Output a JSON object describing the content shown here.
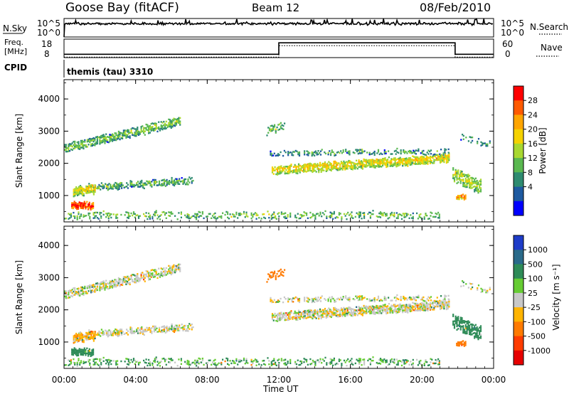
{
  "header": {
    "station": "Goose Bay (fitACF)",
    "beam": "Beam 12",
    "date": "08/Feb/2010"
  },
  "summary_panels": {
    "nsky": {
      "label": "N.Sky",
      "ticks": [
        "10^5",
        "10^0"
      ],
      "right_ticks": [
        "10^5",
        "10^0"
      ],
      "right_label": "N.Search",
      "level_fraction": 0.72
    },
    "freq": {
      "label_line1": "Freq.",
      "label_line2": "[MHz]",
      "ticks": [
        "18",
        "8"
      ],
      "right_ticks": [
        "60",
        "0"
      ],
      "right_label": "Nave",
      "steps": [
        {
          "from_hour": 0,
          "to_hour": 12,
          "level": 0.18
        },
        {
          "from_hour": 12,
          "to_hour": 21.85,
          "level": 0.8
        },
        {
          "from_hour": 21.85,
          "to_hour": 24,
          "level": 0.18
        }
      ]
    },
    "cpid": {
      "label": "CPID",
      "program": "themis (tau) 3310"
    }
  },
  "axes": {
    "ylabel": "Slant Range [km]",
    "xlabel": "Time UT",
    "xticks": [
      "00:00",
      "04:00",
      "08:00",
      "12:00",
      "16:00",
      "20:00",
      "00:00"
    ],
    "yticks": [
      "4000",
      "3000",
      "2000",
      "1000"
    ]
  },
  "power_colorbar": {
    "title": "Power [dB]",
    "ticks": [
      "28",
      "24",
      "20",
      "16",
      "12",
      "8",
      "4"
    ],
    "colors": [
      "#ff0000",
      "#ff5a00",
      "#ffa500",
      "#f5d200",
      "#a8d830",
      "#5ab850",
      "#2e8b70",
      "#1e5aa0",
      "#0000ff"
    ]
  },
  "velocity_colorbar": {
    "title": "Velocity [m s⁻¹]",
    "ticks": [
      "1000",
      "500",
      "100",
      "25",
      "-25",
      "-100",
      "-500",
      "-1000"
    ],
    "colors": [
      "#1e3cc8",
      "#2a6a8a",
      "#2e8b57",
      "#66cc33",
      "#c8c8c8",
      "#ffb400",
      "#ff7a00",
      "#ff3c00",
      "#e60000"
    ]
  },
  "chart_data": {
    "type": "heatmap",
    "x_range_hours": [
      0,
      24
    ],
    "y_range_km": [
      180,
      4600
    ],
    "echo_regions": [
      {
        "name": "band-far-morning",
        "start_h": 0.0,
        "end_h": 6.5,
        "range_start_km": 2500,
        "range_end_km": 3350,
        "thickness_km": 230,
        "density": 0.75,
        "power_mean": 9,
        "vel_mean": 0
      },
      {
        "name": "band-morning-mid",
        "start_h": 0.8,
        "end_h": 7.2,
        "range_start_km": 1250,
        "range_end_km": 1500,
        "thickness_km": 170,
        "density": 0.6,
        "power_mean": 8,
        "vel_mean": 0
      },
      {
        "name": "patch-early-1200",
        "start_h": 0.5,
        "end_h": 1.7,
        "range_start_km": 1150,
        "range_end_km": 1250,
        "thickness_km": 260,
        "density": 0.9,
        "power_mean": 14,
        "vel_mean": -60
      },
      {
        "name": "patch-early-700",
        "start_h": 0.4,
        "end_h": 1.6,
        "range_start_km": 720,
        "range_end_km": 720,
        "thickness_km": 180,
        "density": 0.95,
        "power_mean": 24,
        "vel_mean": 120
      },
      {
        "name": "band-near-day",
        "start_h": 0.0,
        "end_h": 21.0,
        "range_start_km": 420,
        "range_end_km": 420,
        "thickness_km": 180,
        "density": 0.35,
        "power_mean": 9,
        "vel_mean": 60
      },
      {
        "name": "band-afternoon-main",
        "start_h": 11.6,
        "end_h": 21.5,
        "range_start_km": 1820,
        "range_end_km": 2220,
        "thickness_km": 260,
        "density": 0.85,
        "power_mean": 14,
        "vel_mean": 0
      },
      {
        "name": "band-afternoon-upper",
        "start_h": 11.5,
        "end_h": 21.5,
        "range_start_km": 2350,
        "range_end_km": 2400,
        "thickness_km": 130,
        "density": 0.45,
        "power_mean": 7,
        "vel_mean": 0
      },
      {
        "name": "patch-noon-far",
        "start_h": 11.3,
        "end_h": 12.3,
        "range_start_km": 3050,
        "range_end_km": 3250,
        "thickness_km": 260,
        "density": 0.4,
        "power_mean": 8,
        "vel_mean": -150
      },
      {
        "name": "patch-evening",
        "start_h": 21.7,
        "end_h": 23.3,
        "range_start_km": 1700,
        "range_end_km": 1300,
        "thickness_km": 420,
        "density": 0.65,
        "power_mean": 11,
        "vel_mean": 200
      },
      {
        "name": "patch-evening-far",
        "start_h": 22.0,
        "end_h": 23.8,
        "range_start_km": 2900,
        "range_end_km": 2600,
        "thickness_km": 180,
        "density": 0.3,
        "power_mean": 6,
        "vel_mean": 0
      },
      {
        "name": "patch-late-1000",
        "start_h": 21.9,
        "end_h": 22.4,
        "range_start_km": 1000,
        "range_end_km": 1000,
        "thickness_km": 130,
        "density": 0.9,
        "power_mean": 20,
        "vel_mean": -200
      }
    ]
  }
}
